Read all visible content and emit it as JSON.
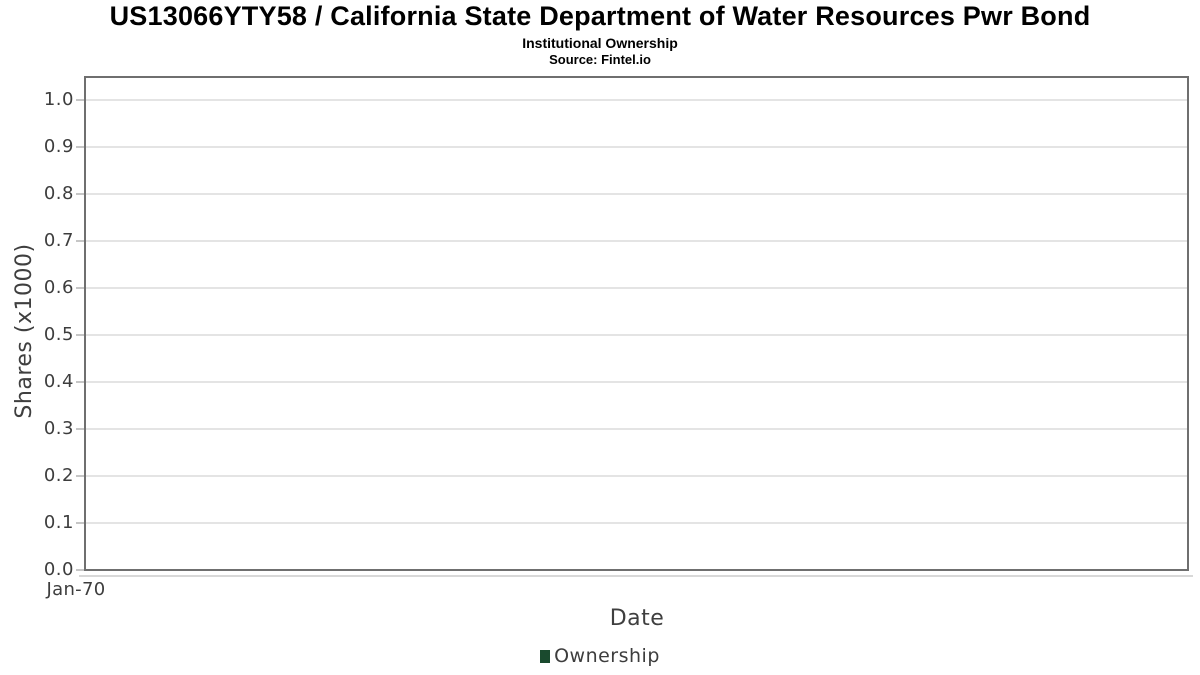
{
  "header": {
    "title": "US13066YTY58 / California State Department of Water Resources Pwr Bond",
    "subtitle": "Institutional Ownership",
    "source": "Source: Fintel.io"
  },
  "chart": {
    "y_axis": {
      "label": "Shares (x1000)",
      "ticks": [
        "1.0",
        "0.9",
        "0.8",
        "0.7",
        "0.6",
        "0.5",
        "0.4",
        "0.3",
        "0.2",
        "0.1",
        "0.0"
      ]
    },
    "x_axis": {
      "label": "Date",
      "ticks": [
        "Jan-70"
      ]
    },
    "legend": {
      "items": [
        {
          "label": "Ownership",
          "color": "#1a4a2e"
        }
      ]
    },
    "colors": {
      "plot_border": "#6f6f6f",
      "gridline": "#e4e4e4",
      "tick_mark": "#c6c6c6",
      "axis_line": "#d8d8d8",
      "tick_text": "#3d3d3d",
      "axis_label_text": "#3f3f3f",
      "title_text": "#000000",
      "background": "#ffffff"
    }
  },
  "chart_data": {
    "type": "bar",
    "title": "US13066YTY58 / California State Department of Water Resources Pwr Bond",
    "subtitle": "Institutional Ownership",
    "source": "Source: Fintel.io",
    "xlabel": "Date",
    "ylabel": "Shares (x1000)",
    "categories": [
      "Jan-70"
    ],
    "series": [
      {
        "name": "Ownership",
        "color": "#1a4a2e",
        "values": []
      }
    ],
    "ylim": [
      0.0,
      1.05
    ],
    "yticks": [
      0.0,
      0.1,
      0.2,
      0.3,
      0.4,
      0.5,
      0.6,
      0.7,
      0.8,
      0.9,
      1.0
    ],
    "grid": true,
    "legend_position": "bottom-center"
  }
}
